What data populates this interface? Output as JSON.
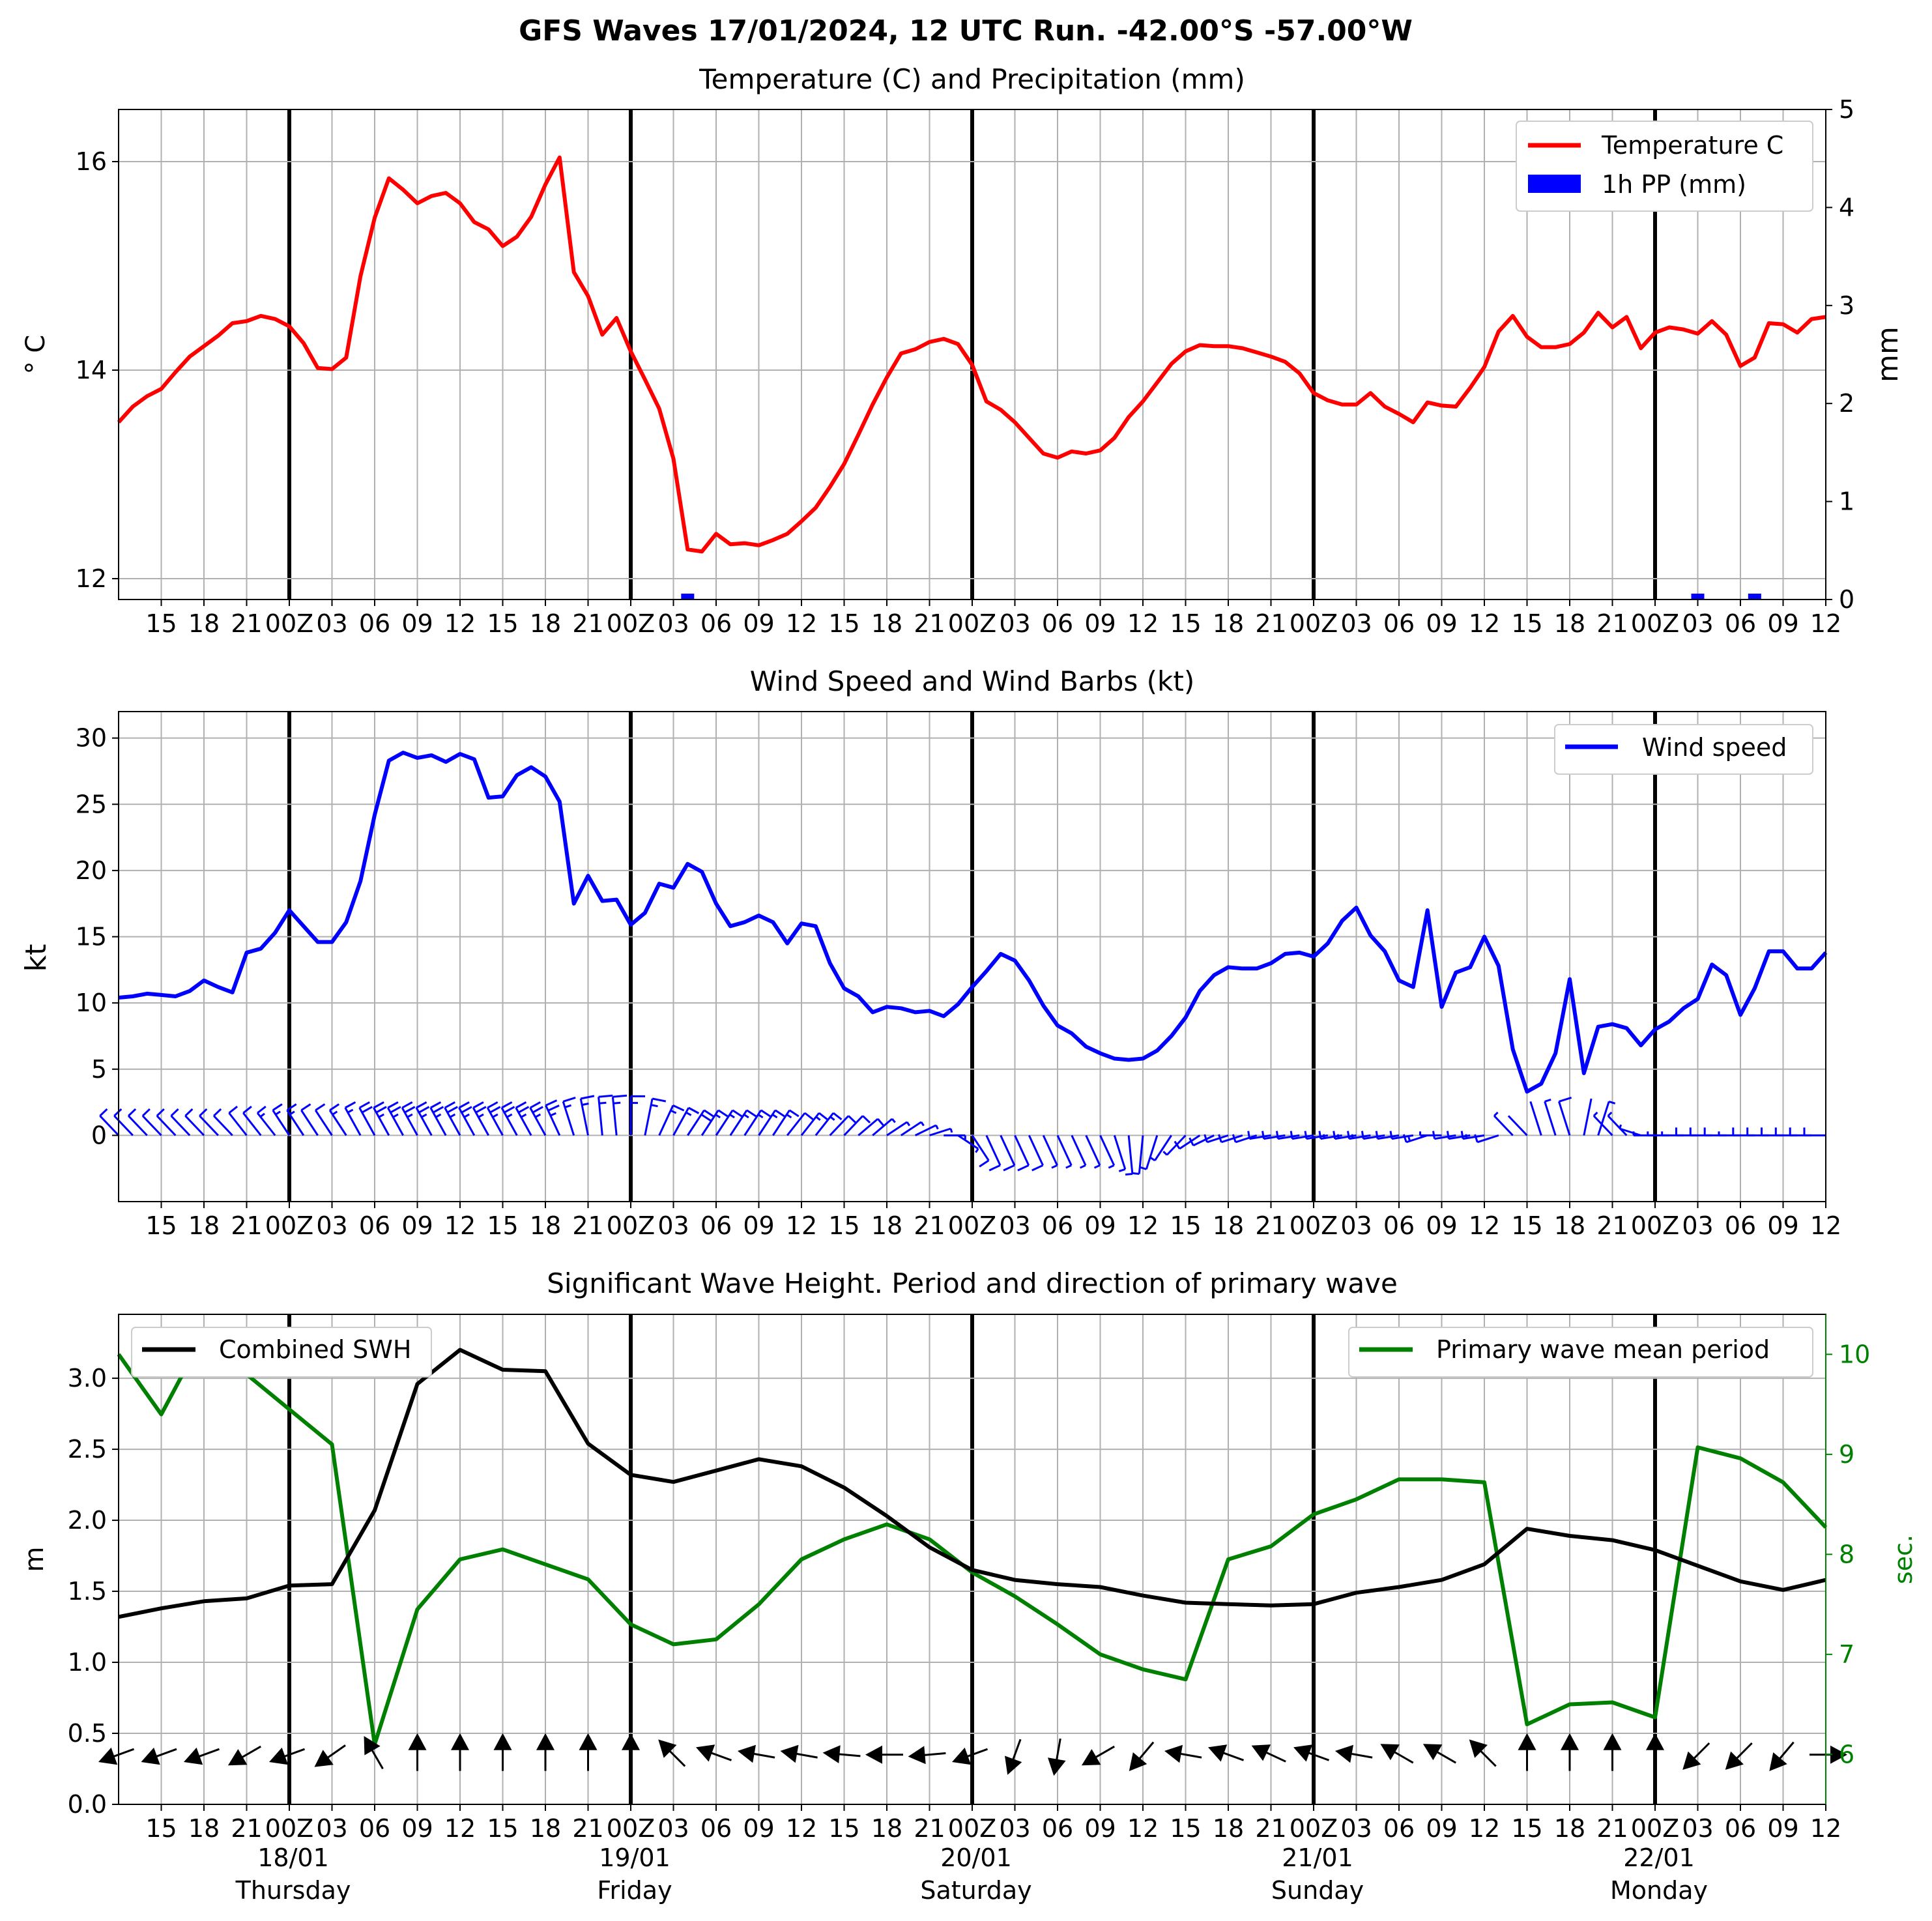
{
  "figure_title": "GFS Waves 17/01/2024, 12 UTC Run. -42.00°S -57.00°W",
  "time_axis": {
    "start": "2024-01-17 12:00 UTC",
    "end": "2024-01-22 12:00 UTC",
    "tick_labels_hourly": [
      "15",
      "18",
      "21",
      "00Z",
      "03",
      "06",
      "09",
      "12",
      "15",
      "18",
      "21",
      "00Z",
      "03",
      "06",
      "09",
      "12",
      "15",
      "18",
      "21",
      "00Z",
      "03",
      "06",
      "09",
      "12",
      "15",
      "18",
      "21",
      "00Z",
      "03",
      "06",
      "09",
      "12",
      "15",
      "18",
      "21",
      "00Z",
      "03",
      "06",
      "09",
      "12"
    ],
    "day_boundaries": [
      "2024-01-18 00:00",
      "2024-01-19 00:00",
      "2024-01-20 00:00",
      "2024-01-21 00:00",
      "2024-01-22 00:00"
    ],
    "day_labels": [
      {
        "date": "18/01",
        "weekday": "Thursday"
      },
      {
        "date": "19/01",
        "weekday": "Friday"
      },
      {
        "date": "20/01",
        "weekday": "Saturday"
      },
      {
        "date": "21/01",
        "weekday": "Sunday"
      },
      {
        "date": "22/01",
        "weekday": "Monday"
      }
    ]
  },
  "colors": {
    "temperature": "#ff0000",
    "precip": "#0000ff",
    "wind": "#0000ff",
    "swh": "#000000",
    "period": "#008000",
    "grid": "#b0b0b0"
  },
  "chart_data": [
    {
      "type": "line",
      "title": "Temperature (C) and Precipitation (mm)",
      "ylabel": "° C",
      "y2label": "mm",
      "ylim": [
        11.8,
        16.5
      ],
      "y2lim": [
        0,
        5
      ],
      "yticks": [
        12,
        14,
        16
      ],
      "y2ticks": [
        0,
        1,
        2,
        3,
        4,
        5
      ],
      "grid": true,
      "legend_position": "top-right",
      "series": [
        {
          "name": "Temperature C",
          "x_hours_from_start": [
            0,
            1,
            2,
            3,
            4,
            5,
            6,
            7,
            8,
            9,
            10,
            11,
            12,
            13,
            14,
            15,
            16,
            17,
            18,
            19,
            20,
            21,
            22,
            23,
            24,
            25,
            26,
            27,
            28,
            29,
            30,
            31,
            32,
            33,
            34,
            35,
            36,
            37,
            38,
            39,
            40,
            41,
            42,
            43,
            44,
            45,
            46,
            47,
            48,
            49,
            50,
            51,
            52,
            53,
            54,
            55,
            56,
            57,
            58,
            59,
            60,
            61,
            62,
            63,
            64,
            65,
            66,
            67,
            68,
            69,
            70,
            71,
            72,
            73,
            74,
            75,
            76,
            77,
            78,
            79,
            80,
            81,
            82,
            83,
            84,
            85,
            86,
            87,
            88,
            89,
            90,
            91,
            92,
            93,
            94,
            95,
            96,
            97,
            98,
            99,
            100,
            101,
            102,
            103,
            104,
            105,
            106,
            107,
            108,
            109,
            110,
            111,
            112,
            113,
            114,
            115,
            116,
            117,
            118,
            119,
            120
          ],
          "values": [
            13.5,
            13.65,
            13.75,
            13.82,
            13.98,
            14.13,
            14.23,
            14.33,
            14.45,
            14.47,
            14.52,
            14.49,
            14.42,
            14.26,
            14.02,
            14.01,
            14.12,
            14.9,
            15.46,
            15.84,
            15.73,
            15.6,
            15.67,
            15.7,
            15.6,
            15.42,
            15.35,
            15.19,
            15.28,
            15.47,
            15.78,
            16.04,
            14.94,
            14.71,
            14.34,
            14.5,
            14.18,
            13.91,
            13.63,
            13.15,
            12.28,
            12.26,
            12.43,
            12.33,
            12.34,
            12.32,
            12.37,
            12.43,
            12.55,
            12.68,
            12.88,
            13.1,
            13.38,
            13.67,
            13.93,
            14.16,
            14.2,
            14.27,
            14.3,
            14.25,
            14.05,
            13.7,
            13.62,
            13.5,
            13.35,
            13.2,
            13.16,
            13.22,
            13.2,
            13.23,
            13.35,
            13.55,
            13.7,
            13.88,
            14.06,
            14.18,
            14.24,
            14.23,
            14.23,
            14.21,
            14.17,
            14.13,
            14.08,
            13.97,
            13.78,
            13.71,
            13.67,
            13.67,
            13.78,
            13.65,
            13.58,
            13.5,
            13.69,
            13.66,
            13.65,
            13.83,
            14.03,
            14.37,
            14.52,
            14.32,
            14.22,
            14.22,
            14.25,
            14.36,
            14.55,
            14.41,
            14.51,
            14.21,
            14.36,
            14.41,
            14.39,
            14.35,
            14.47,
            14.34,
            14.04,
            14.12,
            14.45,
            14.44,
            14.36,
            14.49,
            14.51
          ]
        },
        {
          "name": "1h PP (mm)",
          "type": "bar",
          "x_hours_from_start": [
            40,
            111,
            115
          ],
          "values": [
            0.06,
            0.06,
            0.06
          ]
        }
      ]
    },
    {
      "type": "line",
      "title": "Wind Speed and Wind Barbs (kt)",
      "ylabel": "kt",
      "ylim": [
        -5,
        32
      ],
      "yticks": [
        0,
        5,
        10,
        15,
        20,
        25,
        30
      ],
      "grid": true,
      "legend_position": "top-right",
      "series": [
        {
          "name": "Wind speed",
          "x_hours_from_start": [
            0,
            1,
            2,
            3,
            4,
            5,
            6,
            7,
            8,
            9,
            10,
            11,
            12,
            13,
            14,
            15,
            16,
            17,
            18,
            19,
            20,
            21,
            22,
            23,
            24,
            25,
            26,
            27,
            28,
            29,
            30,
            31,
            32,
            33,
            34,
            35,
            36,
            37,
            38,
            39,
            40,
            41,
            42,
            43,
            44,
            45,
            46,
            47,
            48,
            49,
            50,
            51,
            52,
            53,
            54,
            55,
            56,
            57,
            58,
            59,
            60,
            61,
            62,
            63,
            64,
            65,
            66,
            67,
            68,
            69,
            70,
            71,
            72,
            73,
            74,
            75,
            76,
            77,
            78,
            79,
            80,
            81,
            82,
            83,
            84,
            85,
            86,
            87,
            88,
            89,
            90,
            91,
            92,
            93,
            94,
            95,
            96,
            97,
            98,
            99,
            100,
            101,
            102,
            103,
            104,
            105,
            106,
            107,
            108,
            109,
            110,
            111,
            112,
            113,
            114,
            115,
            116,
            117,
            118,
            119,
            120
          ],
          "values": [
            10.4,
            10.5,
            10.7,
            10.6,
            10.5,
            10.9,
            11.7,
            11.2,
            10.8,
            13.8,
            14.1,
            15.3,
            17.0,
            15.8,
            14.6,
            14.6,
            16.1,
            19.2,
            24.2,
            28.3,
            28.9,
            28.5,
            28.7,
            28.2,
            28.8,
            28.4,
            25.5,
            25.6,
            27.2,
            27.8,
            27.1,
            25.2,
            17.5,
            19.6,
            17.7,
            17.8,
            15.9,
            16.8,
            19.0,
            18.7,
            20.5,
            19.9,
            17.5,
            15.8,
            16.1,
            16.6,
            16.1,
            14.5,
            16.0,
            15.8,
            13.0,
            11.1,
            10.5,
            9.3,
            9.7,
            9.6,
            9.3,
            9.4,
            9.0,
            9.9,
            11.2,
            12.4,
            13.7,
            13.2,
            11.7,
            9.8,
            8.3,
            7.7,
            6.7,
            6.2,
            5.8,
            5.7,
            5.8,
            6.4,
            7.5,
            8.9,
            10.9,
            12.1,
            12.7,
            12.6,
            12.6,
            13.0,
            13.7,
            13.8,
            13.5,
            14.5,
            16.2,
            17.2,
            15.1,
            13.9,
            11.7,
            11.2,
            17.0,
            9.7,
            12.3,
            12.7,
            15.0,
            12.8,
            6.5,
            3.3,
            3.9,
            6.2,
            11.8,
            4.7,
            8.2,
            8.4,
            8.1,
            6.8,
            8.0,
            8.6,
            9.6,
            10.3,
            12.9,
            12.1,
            9.1,
            11.1,
            13.9,
            13.9,
            12.6,
            12.6,
            13.8
          ]
        }
      ],
      "wind_barbs_direction_deg": [
        300,
        300,
        300,
        300,
        300,
        300,
        300,
        300,
        300,
        305,
        305,
        305,
        310,
        310,
        310,
        310,
        310,
        315,
        315,
        315,
        315,
        315,
        315,
        315,
        315,
        315,
        315,
        315,
        315,
        315,
        315,
        320,
        330,
        340,
        350,
        350,
        0,
        20,
        40,
        45,
        50,
        50,
        50,
        50,
        50,
        50,
        50,
        55,
        55,
        55,
        60,
        60,
        65,
        65,
        70,
        70,
        75,
        80,
        90,
        110,
        130,
        140,
        140,
        140,
        140,
        140,
        140,
        140,
        140,
        140,
        150,
        170,
        190,
        210,
        230,
        240,
        250,
        255,
        260,
        260,
        260,
        265,
        265,
        265,
        265,
        265,
        265,
        265,
        265,
        265,
        265,
        265,
        260,
        270,
        265,
        265,
        265,
        260,
        300,
        300,
        330,
        330,
        330,
        20,
        30,
        300,
        300,
        280,
        270,
        270,
        270,
        270,
        270,
        270,
        270,
        270,
        270,
        270,
        270,
        270,
        270
      ]
    },
    {
      "type": "line",
      "title": "Significant Wave Height. Period and direction of primary wave",
      "ylabel": "m",
      "y2label": "sec.",
      "ylim": [
        0,
        3.45
      ],
      "y2lim": [
        5.5,
        10.4
      ],
      "yticks": [
        0.0,
        0.5,
        1.0,
        1.5,
        2.0,
        2.5,
        3.0
      ],
      "y2ticks": [
        6,
        7,
        8,
        9,
        10
      ],
      "grid": true,
      "legend_position": "top-left / top-right",
      "series": [
        {
          "name": "Combined SWH",
          "axis": "left",
          "x_hours_from_start": [
            0,
            3,
            6,
            9,
            12,
            15,
            18,
            21,
            24,
            27,
            30,
            33,
            36,
            39,
            42,
            45,
            48,
            51,
            54,
            57,
            60,
            63,
            66,
            69,
            72,
            75,
            78,
            81,
            84,
            87,
            90,
            93,
            96,
            99,
            102,
            105,
            108,
            111,
            114,
            117,
            120
          ],
          "values": [
            1.32,
            1.38,
            1.43,
            1.45,
            1.54,
            1.55,
            2.07,
            2.96,
            3.2,
            3.06,
            3.05,
            2.54,
            2.32,
            2.27,
            2.35,
            2.43,
            2.38,
            2.23,
            2.03,
            1.81,
            1.65,
            1.58,
            1.55,
            1.53,
            1.47,
            1.42,
            1.41,
            1.4,
            1.41,
            1.49,
            1.53,
            1.58,
            1.69,
            1.94,
            1.89,
            1.86,
            1.79,
            1.68,
            1.57,
            1.51,
            1.58
          ]
        },
        {
          "name": "Primary wave mean period",
          "axis": "right",
          "x_hours_from_start": [
            0,
            3,
            6,
            9,
            12,
            15,
            18,
            21,
            24,
            27,
            30,
            33,
            36,
            39,
            42,
            45,
            48,
            51,
            54,
            57,
            60,
            63,
            66,
            69,
            72,
            75,
            78,
            81,
            84,
            87,
            90,
            93,
            96,
            99,
            102,
            105,
            108,
            111,
            114,
            117,
            120
          ],
          "values": [
            10.0,
            9.4,
            10.2,
            9.8,
            9.45,
            9.1,
            6.1,
            7.45,
            7.95,
            8.05,
            7.9,
            7.75,
            7.3,
            7.1,
            7.15,
            7.5,
            7.95,
            8.15,
            8.3,
            8.15,
            7.82,
            7.58,
            7.3,
            7.0,
            6.85,
            6.75,
            7.95,
            8.08,
            8.4,
            8.55,
            8.75,
            8.75,
            8.72,
            6.3,
            6.5,
            6.52,
            6.37,
            9.07,
            8.96,
            8.72,
            8.27
          ]
        }
      ],
      "primary_wave_direction_deg": [
        250,
        250,
        250,
        240,
        250,
        235,
        330,
        0,
        0,
        0,
        0,
        0,
        0,
        315,
        290,
        280,
        280,
        275,
        270,
        265,
        250,
        200,
        190,
        240,
        220,
        280,
        290,
        295,
        290,
        280,
        300,
        300,
        315,
        0,
        0,
        0,
        0,
        225,
        225,
        220,
        90
      ]
    }
  ]
}
